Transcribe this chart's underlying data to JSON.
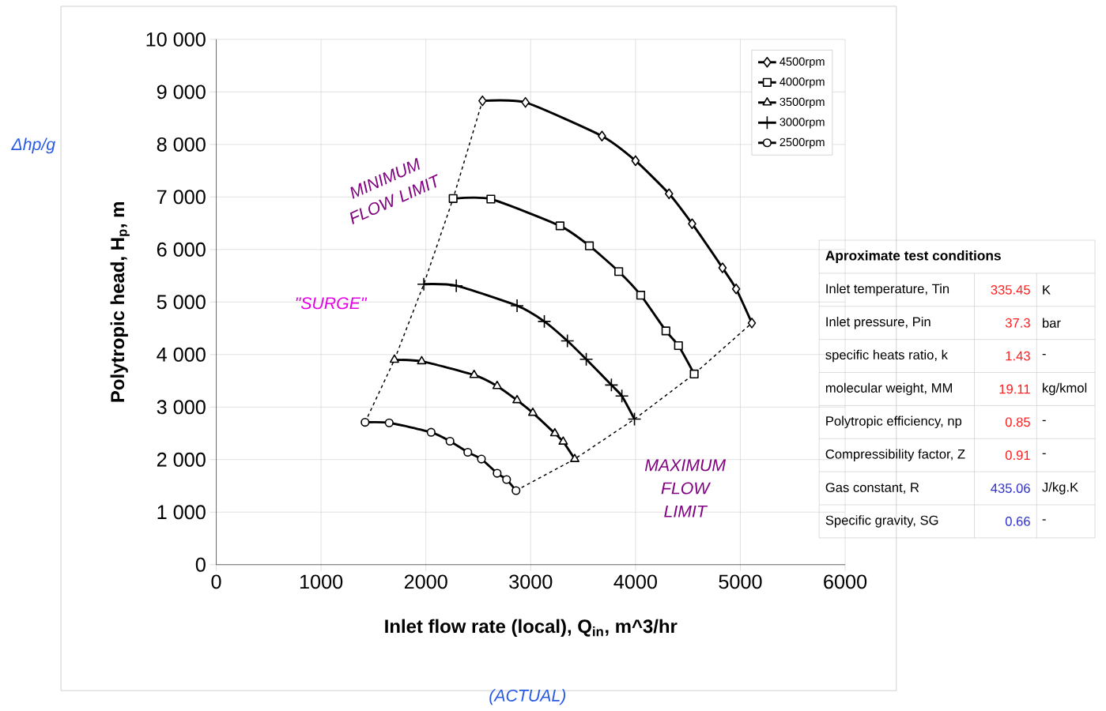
{
  "chart_data": [
    {
      "type": "line",
      "xlabel": "Inlet flow rate (local), Q$_{in}$, m^3/hr",
      "ylabel": "Polytropic head, H$_{p}$, m",
      "xlim": [
        0,
        6000
      ],
      "xticks": [
        0,
        1000,
        2000,
        3000,
        4000,
        5000,
        6000
      ],
      "ylim": [
        0,
        10000
      ],
      "yticks": [
        0,
        {
          "value": 1000,
          "label": "1 000"
        },
        {
          "value": 2000,
          "label": "2 000"
        },
        {
          "value": 3000,
          "label": "3 000"
        },
        {
          "value": 4000,
          "label": "4 000"
        },
        {
          "value": 5000,
          "label": "5 000"
        },
        {
          "value": 6000,
          "label": "6 000"
        },
        {
          "value": 7000,
          "label": "7 000"
        },
        {
          "value": 8000,
          "label": "8 000"
        },
        {
          "value": 9000,
          "label": "9 000"
        },
        {
          "value": 10000,
          "label": "10 000"
        }
      ],
      "grid": true,
      "legend": "top right",
      "series": [
        {
          "name": "4500rpm",
          "color": "#000000",
          "marker": "diamond",
          "x": [
            2540,
            2950,
            3680,
            4000,
            4320,
            4540,
            4830,
            4960,
            5110
          ],
          "values": [
            8830,
            8800,
            8160,
            7690,
            7060,
            6490,
            5650,
            5250,
            4600
          ]
        },
        {
          "name": "4000rpm",
          "color": "#000000",
          "marker": "square",
          "x": [
            2260,
            2620,
            3280,
            3560,
            3840,
            4050,
            4290,
            4410,
            4560
          ],
          "values": [
            6970,
            6960,
            6450,
            6070,
            5580,
            5130,
            4450,
            4170,
            3630
          ]
        },
        {
          "name": "3500rpm",
          "color": "#000000",
          "marker": "triangle",
          "x": [
            1700,
            1960,
            2460,
            2680,
            2870,
            3020,
            3230,
            3310,
            3420
          ],
          "values": [
            3900,
            3870,
            3610,
            3400,
            3130,
            2890,
            2500,
            2340,
            2010
          ]
        },
        {
          "name": "3000rpm",
          "color": "#000000",
          "marker": "cross",
          "x": [
            1980,
            2290,
            2870,
            3130,
            3350,
            3530,
            3770,
            3870,
            3990
          ],
          "values": [
            5340,
            5310,
            4930,
            4630,
            4260,
            3910,
            3420,
            3210,
            2770
          ]
        },
        {
          "name": "2500rpm",
          "color": "#000000",
          "marker": "circle",
          "x": [
            1420,
            1650,
            2050,
            2230,
            2400,
            2530,
            2680,
            2770,
            2860
          ],
          "values": [
            2710,
            2700,
            2520,
            2350,
            2140,
            2010,
            1740,
            1620,
            1410
          ]
        },
        {
          "color": "#000000",
          "marker": "none",
          "line_style": "dashed",
          "x": [
            1420,
            1700,
            1980,
            2260,
            2540
          ],
          "values": [
            2710,
            3900,
            5340,
            6970,
            8830
          ]
        },
        {
          "color": "#000000",
          "marker": "none",
          "line_style": "dashed",
          "x": [
            2860,
            3420,
            3990,
            4560,
            5110
          ],
          "values": [
            1410,
            2010,
            2770,
            3630,
            4600
          ]
        }
      ],
      "annotations": [
        "MINIMUM FLOW LIMIT",
        "\"SURGE\"",
        "MAXIMUM FLOW LIMIT",
        "(ACTUAL)",
        "Δhp/g"
      ]
    },
    {
      "type": "other",
      "title": "Aproximate test conditions",
      "categories": [
        "Inlet temperature, Tin",
        "Inlet pressure, Pin",
        "specific heats ratio, k",
        "molecular weight, MM",
        "Polytropic efficiency, np",
        "Compressibility factor, Z",
        "Gas constant, R",
        "Specific gravity, SG"
      ],
      "value_labels": [
        "335.45",
        "37.3",
        "1.43",
        "19.11",
        "0.85",
        "0.91",
        "435.06",
        "0.66"
      ],
      "colors": [
        "#ff2020",
        "#ff2020",
        "#ff2020",
        "#ff2020",
        "#ff2020",
        "#ff2020",
        "#3333cc",
        "#3333cc"
      ],
      "annotations": [
        "K",
        "bar",
        "-",
        "kg/kmol",
        "-",
        "-",
        "J/kg.K",
        "-"
      ]
    }
  ]
}
